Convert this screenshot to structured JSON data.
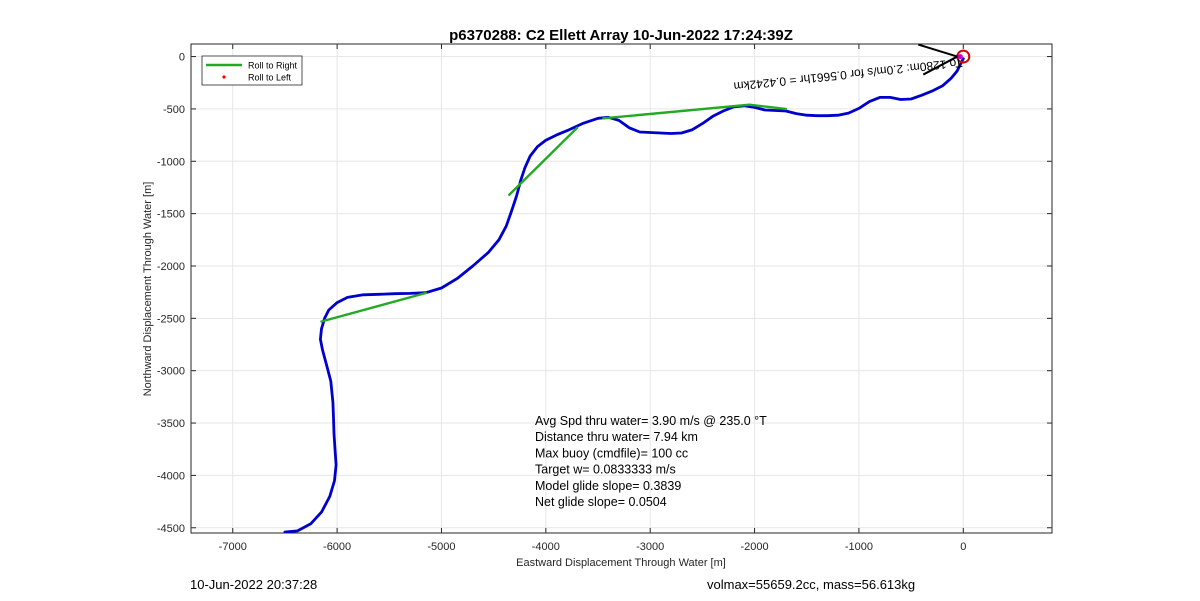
{
  "chart_data": {
    "type": "line",
    "title": "p6370288: C2 Ellett Array 10-Jun-2022 17:24:39Z",
    "xlabel": "Eastward Displacement Through Water [m]",
    "ylabel": "Northward Displacement Through Water [m]",
    "xlim": [
      -7400,
      850
    ],
    "ylim": [
      -4550,
      120
    ],
    "xticks": [
      -7000,
      -6000,
      -5000,
      -4000,
      -3000,
      -2000,
      -1000,
      0
    ],
    "yticks": [
      0,
      -500,
      -1000,
      -1500,
      -2000,
      -2500,
      -3000,
      -3500,
      -4000,
      -4500
    ],
    "grid": true,
    "legend": {
      "position": "top-left",
      "entries": [
        {
          "label": "Roll to Right",
          "color": "#22aa22",
          "marker": "line"
        },
        {
          "label": "Roll to Left",
          "color": "#ff0000",
          "marker": "dot"
        }
      ]
    },
    "series": [
      {
        "color": "#0000cc",
        "x": [
          -6500,
          -6380,
          -6250,
          -6150,
          -6070,
          -6025,
          -6010,
          -6020,
          -6030,
          -6035,
          -6040,
          -6060,
          -6100,
          -6140,
          -6160,
          -6150,
          -6120,
          -6080,
          -6000,
          -5900,
          -5750,
          -5600,
          -5450,
          -5300,
          -5150,
          -5000,
          -4850,
          -4700,
          -4550,
          -4450,
          -4380,
          -4330,
          -4280,
          -4240,
          -4200,
          -4150,
          -4080,
          -4000,
          -3900,
          -3780,
          -3650,
          -3500,
          -3400,
          -3300,
          -3200,
          -3100,
          -3000,
          -2900,
          -2800,
          -2700,
          -2600,
          -2500,
          -2400,
          -2300,
          -2200,
          -2100,
          -2000,
          -1900,
          -1800,
          -1700,
          -1600,
          -1500,
          -1400,
          -1300,
          -1200,
          -1100,
          -1000,
          -900,
          -800,
          -700,
          -600,
          -500,
          -400,
          -300,
          -200,
          -120,
          -60,
          -20,
          0
        ],
        "y": [
          -4540,
          -4530,
          -4460,
          -4350,
          -4200,
          -4050,
          -3900,
          -3750,
          -3600,
          -3450,
          -3300,
          -3100,
          -2950,
          -2800,
          -2700,
          -2600,
          -2500,
          -2420,
          -2350,
          -2300,
          -2275,
          -2270,
          -2265,
          -2262,
          -2255,
          -2210,
          -2120,
          -2000,
          -1870,
          -1750,
          -1620,
          -1480,
          -1330,
          -1180,
          -1060,
          -950,
          -860,
          -800,
          -750,
          -700,
          -640,
          -590,
          -580,
          -610,
          -680,
          -720,
          -725,
          -730,
          -735,
          -730,
          -700,
          -640,
          -570,
          -520,
          -480,
          -470,
          -485,
          -510,
          -515,
          -520,
          -545,
          -560,
          -565,
          -565,
          -560,
          -540,
          -495,
          -430,
          -390,
          -390,
          -410,
          -405,
          -370,
          -330,
          -280,
          -210,
          -140,
          -60,
          -20
        ]
      },
      {
        "name": "Roll to Right",
        "color": "#22aa22",
        "segments": [
          [
            [
              -6150,
              -2530
            ],
            [
              -5150,
              -2258
            ]
          ],
          [
            [
              -4350,
              -1320
            ],
            [
              -3700,
              -680
            ]
          ],
          [
            [
              -3450,
              -590
            ],
            [
              -2050,
              -460
            ]
          ],
          [
            [
              -2050,
              -460
            ],
            [
              -1700,
              -500
            ]
          ]
        ]
      }
    ],
    "annotations": [
      {
        "text": "Avg Spd thru water=  3.90 m/s @ 235.0 °T"
      },
      {
        "text": "Distance thru water=  7.94 km"
      },
      {
        "text": "Max buoy (cmdfile)= 100 cc"
      },
      {
        "text": "Target w= 0.0833333 m/s"
      },
      {
        "text": "Model glide slope= 0.3839"
      },
      {
        "text": "Net glide slope= 0.0504"
      }
    ],
    "rotated_label": {
      "text": "To 1280m: 2.0m/s for 0.5661hr = 0.4242km",
      "x": 5,
      "y": 0,
      "angle_deg": 174
    }
  },
  "footer": {
    "left": "10-Jun-2022 20:37:28",
    "right": "volmax=55659.2cc, mass=56.613kg"
  }
}
